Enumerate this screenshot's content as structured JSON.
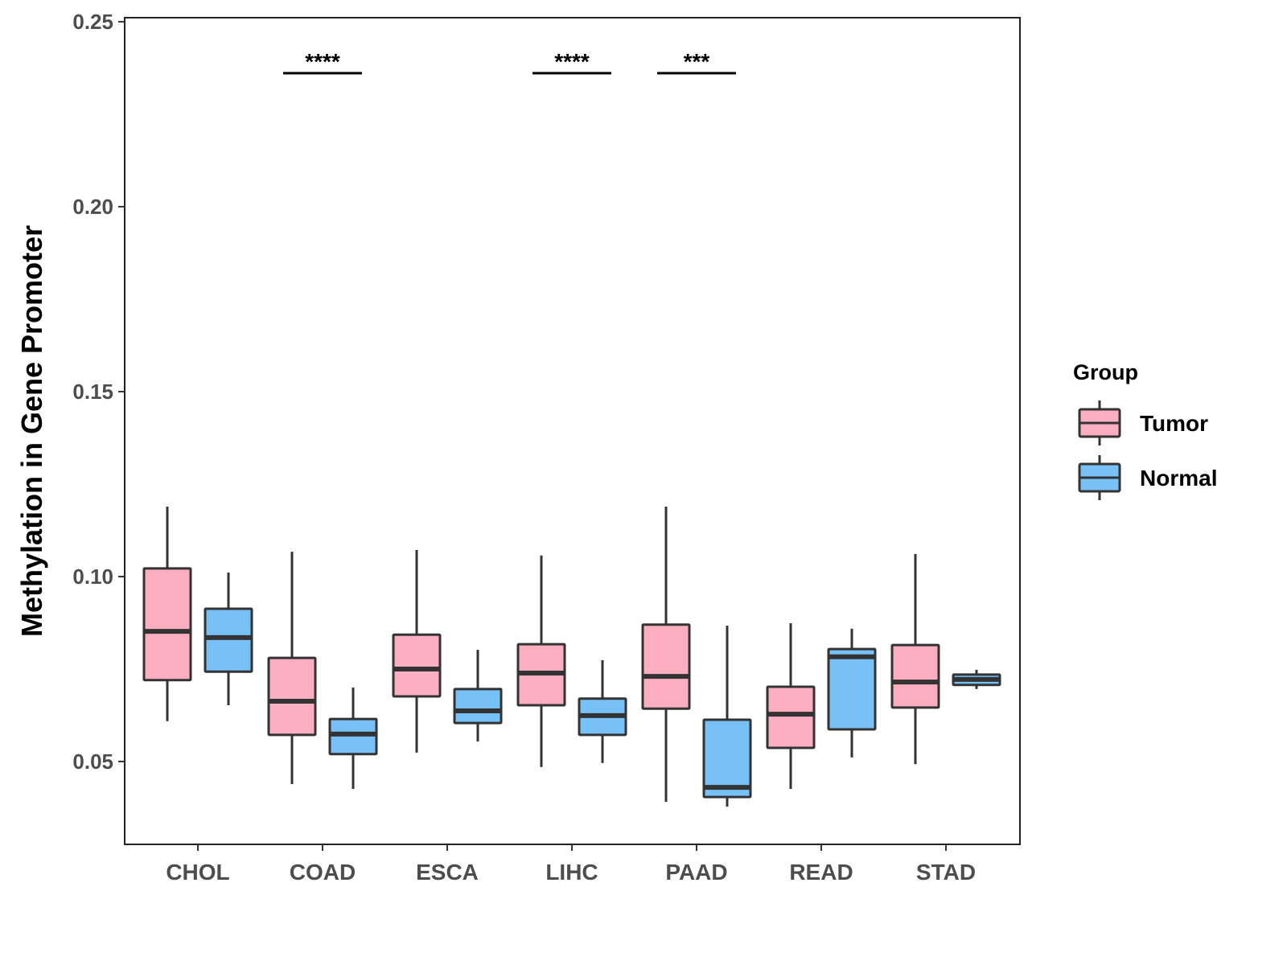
{
  "chart_data": {
    "type": "boxplot",
    "title": "",
    "xlabel": "",
    "ylabel": "Methylation in Gene Promoter",
    "ylim": [
      0.0276,
      0.2511
    ],
    "yticks": [
      0.05,
      0.1,
      0.15,
      0.2,
      0.25
    ],
    "ytick_labels": [
      "0.05",
      "0.10",
      "0.15",
      "0.20",
      "0.25"
    ],
    "grid": false,
    "categories": [
      "CHOL",
      "COAD",
      "ESCA",
      "LIHC",
      "PAAD",
      "READ",
      "STAD"
    ],
    "legend": {
      "title": "Group",
      "placement": "right",
      "entries": [
        "Tumor",
        "Normal"
      ]
    },
    "series": [
      {
        "name": "Tumor",
        "color": "#FBAEC0",
        "boxes": [
          {
            "min": 0.0609,
            "q1": 0.072,
            "median": 0.0852,
            "q3": 0.1022,
            "max": 0.1189
          },
          {
            "min": 0.0439,
            "q1": 0.0572,
            "median": 0.0663,
            "q3": 0.078,
            "max": 0.1067
          },
          {
            "min": 0.0524,
            "q1": 0.0676,
            "median": 0.075,
            "q3": 0.0843,
            "max": 0.1072
          },
          {
            "min": 0.0485,
            "q1": 0.0652,
            "median": 0.0739,
            "q3": 0.0817,
            "max": 0.1057
          },
          {
            "min": 0.0391,
            "q1": 0.0643,
            "median": 0.073,
            "q3": 0.087,
            "max": 0.1189
          },
          {
            "min": 0.0426,
            "q1": 0.0537,
            "median": 0.0628,
            "q3": 0.0702,
            "max": 0.0874
          },
          {
            "min": 0.0493,
            "q1": 0.0646,
            "median": 0.0715,
            "q3": 0.0815,
            "max": 0.1061
          }
        ]
      },
      {
        "name": "Normal",
        "color": "#77C1F7",
        "boxes": [
          {
            "min": 0.0652,
            "q1": 0.0743,
            "median": 0.0835,
            "q3": 0.0913,
            "max": 0.1011
          },
          {
            "min": 0.0426,
            "q1": 0.052,
            "median": 0.0574,
            "q3": 0.0615,
            "max": 0.07
          },
          {
            "min": 0.0554,
            "q1": 0.0604,
            "median": 0.0637,
            "q3": 0.0696,
            "max": 0.0802
          },
          {
            "min": 0.0496,
            "q1": 0.0572,
            "median": 0.0624,
            "q3": 0.067,
            "max": 0.0774
          },
          {
            "min": 0.0378,
            "q1": 0.0404,
            "median": 0.043,
            "q3": 0.0613,
            "max": 0.0867
          },
          {
            "min": 0.0511,
            "q1": 0.0587,
            "median": 0.0783,
            "q3": 0.0804,
            "max": 0.0859
          },
          {
            "min": 0.0696,
            "q1": 0.0707,
            "median": 0.0722,
            "q3": 0.0735,
            "max": 0.0748
          }
        ]
      }
    ],
    "annotations": [
      {
        "category": "COAD",
        "label": "****"
      },
      {
        "category": "LIHC",
        "label": "****"
      },
      {
        "category": "PAAD",
        "label": "***"
      }
    ]
  }
}
